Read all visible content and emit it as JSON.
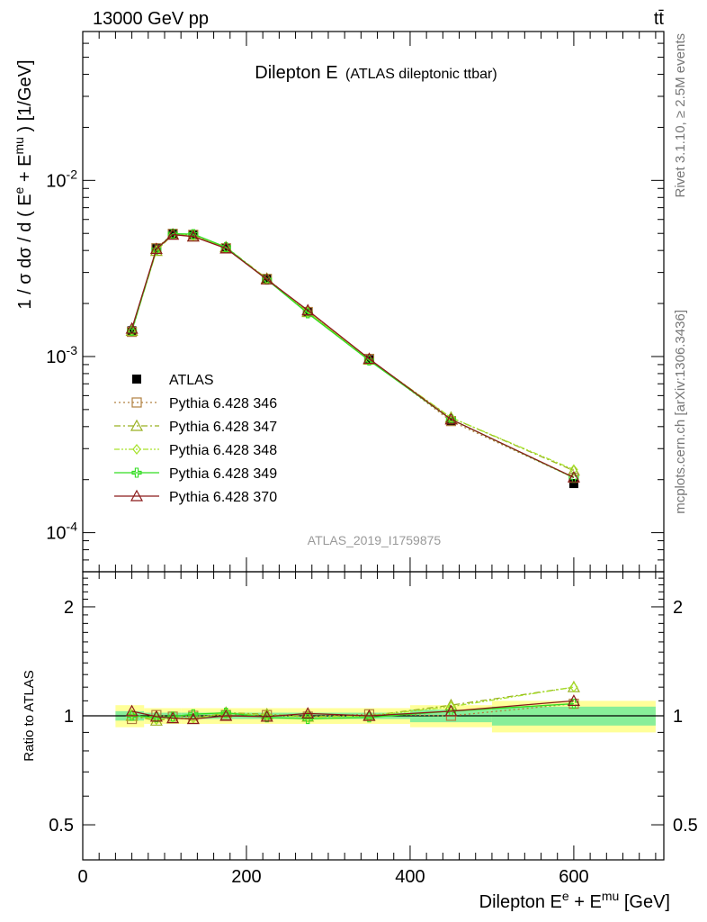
{
  "header": {
    "beam": "13000 GeV pp",
    "process": "tt̄",
    "plot_title": "Dilepton E",
    "plot_subtitle": "(ATLAS dileptonic ttbar)",
    "analysis_id": "ATLAS_2019_I1759875",
    "side_rivet": "Rivet 3.1.10, ≥ 2.5M events",
    "side_mcplots": "mcplots.cern.ch [arXiv:1306.3436]"
  },
  "chart_data": [
    {
      "type": "line",
      "panel": "main",
      "y_scale": "log",
      "ylim": [
        6e-05,
        0.07
      ],
      "xlim": [
        0,
        710
      ],
      "ylabel": "1 / σ dσ / d ( E^e + E^mu ) [1/GeV]",
      "ytick_labels": [
        "10^-4",
        "10^-3",
        "10^-2"
      ],
      "legend_position": "middle-left",
      "x": [
        60,
        90,
        110,
        135,
        175,
        225,
        275,
        350,
        450,
        600
      ],
      "series": [
        {
          "name": "ATLAS",
          "color": "#000000",
          "marker": "square-filled",
          "values": [
            0.0014,
            0.0041,
            0.005,
            0.0049,
            0.0041,
            0.00275,
            0.0018,
            0.00096,
            0.00043,
            0.00019
          ]
        },
        {
          "name": "Pythia 6.428 346",
          "color": "#b08040",
          "marker": "square-open",
          "dash": "dotted",
          "values": [
            0.00138,
            0.00412,
            0.00497,
            0.00491,
            0.00412,
            0.00276,
            0.00179,
            0.00097,
            0.00043,
            0.000205
          ]
        },
        {
          "name": "Pythia 6.428 347",
          "color": "#99b020",
          "marker": "triangle-open",
          "dash": "dashdot",
          "values": [
            0.0014,
            0.00398,
            0.00493,
            0.00481,
            0.00418,
            0.00277,
            0.00179,
            0.00096,
            0.00045,
            0.000225
          ]
        },
        {
          "name": "Pythia 6.428 348",
          "color": "#a6e22a",
          "marker": "diamond-open",
          "dash": "dashdotdot",
          "values": [
            0.00141,
            0.00399,
            0.00494,
            0.00483,
            0.00415,
            0.00276,
            0.00178,
            0.00096,
            0.00045,
            0.000228
          ]
        },
        {
          "name": "Pythia 6.428 349",
          "color": "#33dd22",
          "marker": "cross-open",
          "dash": "solid",
          "values": [
            0.0014,
            0.00405,
            0.00498,
            0.00495,
            0.00418,
            0.00273,
            0.00176,
            0.00095,
            0.00044,
            0.000205
          ]
        },
        {
          "name": "Pythia 6.428 370",
          "color": "#8b1a1a",
          "marker": "triangle-open",
          "dash": "solid",
          "values": [
            0.00144,
            0.00408,
            0.00492,
            0.0048,
            0.00411,
            0.00274,
            0.00183,
            0.00097,
            0.00044,
            0.000206
          ]
        }
      ]
    },
    {
      "type": "line",
      "panel": "ratio",
      "y_scale": "log",
      "ylim": [
        0.4,
        2.5
      ],
      "xlim": [
        0,
        710
      ],
      "ylabel": "Ratio to ATLAS",
      "xlabel": "Dilepton E^e + E^mu [GeV]",
      "ytick_labels": [
        "0.5",
        "1",
        "2"
      ],
      "xtick_labels": [
        "0",
        "200",
        "400",
        "600"
      ],
      "xticks": [
        0,
        200,
        400,
        600
      ],
      "x": [
        60,
        90,
        110,
        135,
        175,
        225,
        275,
        350,
        450,
        600
      ],
      "bands": [
        {
          "x_edges": [
            40,
            75,
            100,
            120,
            150,
            200,
            250,
            300,
            400,
            500,
            700
          ],
          "yellow_half": [
            0.07,
            0.05,
            0.05,
            0.05,
            0.05,
            0.05,
            0.05,
            0.05,
            0.07,
            0.1
          ],
          "green_half": [
            0.03,
            0.02,
            0.02,
            0.02,
            0.02,
            0.02,
            0.02,
            0.02,
            0.04,
            0.06
          ]
        }
      ],
      "series": [
        {
          "name": "Pythia 6.428 346",
          "values": [
            0.98,
            1.005,
            0.995,
            1.0,
            1.005,
            1.005,
            0.995,
            1.01,
            1.0,
            1.08
          ]
        },
        {
          "name": "Pythia 6.428 347",
          "values": [
            1.0,
            0.97,
            0.985,
            0.98,
            1.02,
            1.01,
            0.995,
            1.0,
            1.07,
            1.2
          ]
        },
        {
          "name": "Pythia 6.428 348",
          "values": [
            1.01,
            0.975,
            0.99,
            0.985,
            1.015,
            1.005,
            0.99,
            1.0,
            1.06,
            1.2
          ]
        },
        {
          "name": "Pythia 6.428 349",
          "values": [
            1.0,
            0.99,
            0.995,
            1.01,
            1.02,
            0.99,
            0.98,
            0.99,
            1.03,
            1.08
          ]
        },
        {
          "name": "Pythia 6.428 370",
          "values": [
            1.03,
            0.995,
            0.985,
            0.98,
            1.0,
            0.995,
            1.015,
            1.0,
            1.03,
            1.1
          ]
        }
      ]
    }
  ]
}
